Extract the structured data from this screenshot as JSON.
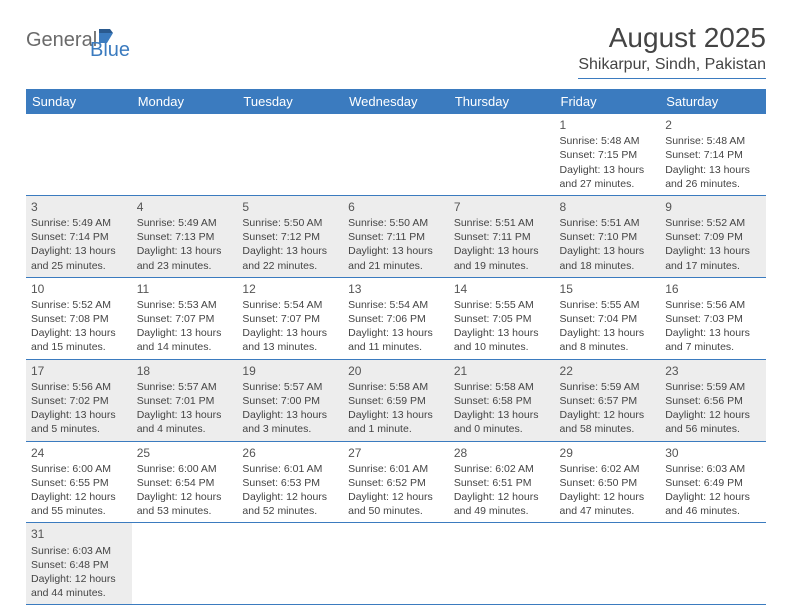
{
  "logo": {
    "general": "General",
    "blue": "Blue"
  },
  "title": "August 2025",
  "location": "Shikarpur, Sindh, Pakistan",
  "colors": {
    "header_bg": "#3b7bbf",
    "header_text": "#ffffff",
    "alt_row_bg": "#ededed",
    "text": "#444444",
    "border": "#3b7bbf"
  },
  "weekdays": [
    "Sunday",
    "Monday",
    "Tuesday",
    "Wednesday",
    "Thursday",
    "Friday",
    "Saturday"
  ],
  "weeks": [
    {
      "alt": false,
      "days": [
        null,
        null,
        null,
        null,
        null,
        {
          "n": "1",
          "sr": "Sunrise: 5:48 AM",
          "ss": "Sunset: 7:15 PM",
          "dl1": "Daylight: 13 hours",
          "dl2": "and 27 minutes."
        },
        {
          "n": "2",
          "sr": "Sunrise: 5:48 AM",
          "ss": "Sunset: 7:14 PM",
          "dl1": "Daylight: 13 hours",
          "dl2": "and 26 minutes."
        }
      ]
    },
    {
      "alt": true,
      "days": [
        {
          "n": "3",
          "sr": "Sunrise: 5:49 AM",
          "ss": "Sunset: 7:14 PM",
          "dl1": "Daylight: 13 hours",
          "dl2": "and 25 minutes."
        },
        {
          "n": "4",
          "sr": "Sunrise: 5:49 AM",
          "ss": "Sunset: 7:13 PM",
          "dl1": "Daylight: 13 hours",
          "dl2": "and 23 minutes."
        },
        {
          "n": "5",
          "sr": "Sunrise: 5:50 AM",
          "ss": "Sunset: 7:12 PM",
          "dl1": "Daylight: 13 hours",
          "dl2": "and 22 minutes."
        },
        {
          "n": "6",
          "sr": "Sunrise: 5:50 AM",
          "ss": "Sunset: 7:11 PM",
          "dl1": "Daylight: 13 hours",
          "dl2": "and 21 minutes."
        },
        {
          "n": "7",
          "sr": "Sunrise: 5:51 AM",
          "ss": "Sunset: 7:11 PM",
          "dl1": "Daylight: 13 hours",
          "dl2": "and 19 minutes."
        },
        {
          "n": "8",
          "sr": "Sunrise: 5:51 AM",
          "ss": "Sunset: 7:10 PM",
          "dl1": "Daylight: 13 hours",
          "dl2": "and 18 minutes."
        },
        {
          "n": "9",
          "sr": "Sunrise: 5:52 AM",
          "ss": "Sunset: 7:09 PM",
          "dl1": "Daylight: 13 hours",
          "dl2": "and 17 minutes."
        }
      ]
    },
    {
      "alt": false,
      "days": [
        {
          "n": "10",
          "sr": "Sunrise: 5:52 AM",
          "ss": "Sunset: 7:08 PM",
          "dl1": "Daylight: 13 hours",
          "dl2": "and 15 minutes."
        },
        {
          "n": "11",
          "sr": "Sunrise: 5:53 AM",
          "ss": "Sunset: 7:07 PM",
          "dl1": "Daylight: 13 hours",
          "dl2": "and 14 minutes."
        },
        {
          "n": "12",
          "sr": "Sunrise: 5:54 AM",
          "ss": "Sunset: 7:07 PM",
          "dl1": "Daylight: 13 hours",
          "dl2": "and 13 minutes."
        },
        {
          "n": "13",
          "sr": "Sunrise: 5:54 AM",
          "ss": "Sunset: 7:06 PM",
          "dl1": "Daylight: 13 hours",
          "dl2": "and 11 minutes."
        },
        {
          "n": "14",
          "sr": "Sunrise: 5:55 AM",
          "ss": "Sunset: 7:05 PM",
          "dl1": "Daylight: 13 hours",
          "dl2": "and 10 minutes."
        },
        {
          "n": "15",
          "sr": "Sunrise: 5:55 AM",
          "ss": "Sunset: 7:04 PM",
          "dl1": "Daylight: 13 hours",
          "dl2": "and 8 minutes."
        },
        {
          "n": "16",
          "sr": "Sunrise: 5:56 AM",
          "ss": "Sunset: 7:03 PM",
          "dl1": "Daylight: 13 hours",
          "dl2": "and 7 minutes."
        }
      ]
    },
    {
      "alt": true,
      "days": [
        {
          "n": "17",
          "sr": "Sunrise: 5:56 AM",
          "ss": "Sunset: 7:02 PM",
          "dl1": "Daylight: 13 hours",
          "dl2": "and 5 minutes."
        },
        {
          "n": "18",
          "sr": "Sunrise: 5:57 AM",
          "ss": "Sunset: 7:01 PM",
          "dl1": "Daylight: 13 hours",
          "dl2": "and 4 minutes."
        },
        {
          "n": "19",
          "sr": "Sunrise: 5:57 AM",
          "ss": "Sunset: 7:00 PM",
          "dl1": "Daylight: 13 hours",
          "dl2": "and 3 minutes."
        },
        {
          "n": "20",
          "sr": "Sunrise: 5:58 AM",
          "ss": "Sunset: 6:59 PM",
          "dl1": "Daylight: 13 hours",
          "dl2": "and 1 minute."
        },
        {
          "n": "21",
          "sr": "Sunrise: 5:58 AM",
          "ss": "Sunset: 6:58 PM",
          "dl1": "Daylight: 13 hours",
          "dl2": "and 0 minutes."
        },
        {
          "n": "22",
          "sr": "Sunrise: 5:59 AM",
          "ss": "Sunset: 6:57 PM",
          "dl1": "Daylight: 12 hours",
          "dl2": "and 58 minutes."
        },
        {
          "n": "23",
          "sr": "Sunrise: 5:59 AM",
          "ss": "Sunset: 6:56 PM",
          "dl1": "Daylight: 12 hours",
          "dl2": "and 56 minutes."
        }
      ]
    },
    {
      "alt": false,
      "days": [
        {
          "n": "24",
          "sr": "Sunrise: 6:00 AM",
          "ss": "Sunset: 6:55 PM",
          "dl1": "Daylight: 12 hours",
          "dl2": "and 55 minutes."
        },
        {
          "n": "25",
          "sr": "Sunrise: 6:00 AM",
          "ss": "Sunset: 6:54 PM",
          "dl1": "Daylight: 12 hours",
          "dl2": "and 53 minutes."
        },
        {
          "n": "26",
          "sr": "Sunrise: 6:01 AM",
          "ss": "Sunset: 6:53 PM",
          "dl1": "Daylight: 12 hours",
          "dl2": "and 52 minutes."
        },
        {
          "n": "27",
          "sr": "Sunrise: 6:01 AM",
          "ss": "Sunset: 6:52 PM",
          "dl1": "Daylight: 12 hours",
          "dl2": "and 50 minutes."
        },
        {
          "n": "28",
          "sr": "Sunrise: 6:02 AM",
          "ss": "Sunset: 6:51 PM",
          "dl1": "Daylight: 12 hours",
          "dl2": "and 49 minutes."
        },
        {
          "n": "29",
          "sr": "Sunrise: 6:02 AM",
          "ss": "Sunset: 6:50 PM",
          "dl1": "Daylight: 12 hours",
          "dl2": "and 47 minutes."
        },
        {
          "n": "30",
          "sr": "Sunrise: 6:03 AM",
          "ss": "Sunset: 6:49 PM",
          "dl1": "Daylight: 12 hours",
          "dl2": "and 46 minutes."
        }
      ]
    },
    {
      "alt": true,
      "days": [
        {
          "n": "31",
          "sr": "Sunrise: 6:03 AM",
          "ss": "Sunset: 6:48 PM",
          "dl1": "Daylight: 12 hours",
          "dl2": "and 44 minutes."
        },
        null,
        null,
        null,
        null,
        null,
        null
      ]
    }
  ]
}
